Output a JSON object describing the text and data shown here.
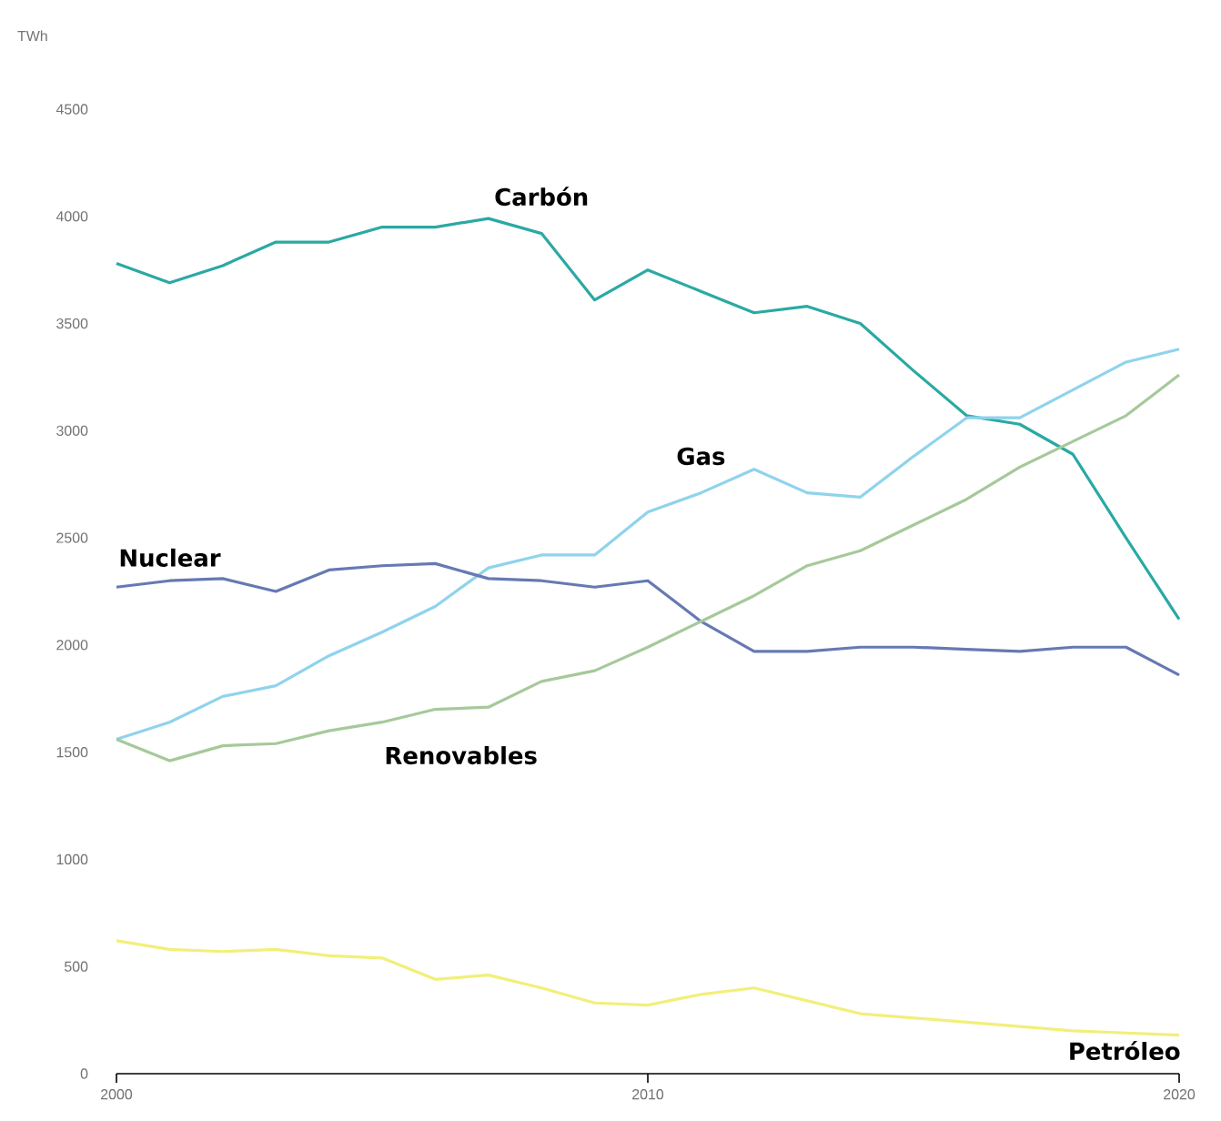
{
  "chart_data": {
    "type": "line",
    "ylabel": "TWh",
    "x": [
      2000,
      2001,
      2002,
      2003,
      2004,
      2005,
      2006,
      2007,
      2008,
      2009,
      2010,
      2011,
      2012,
      2013,
      2014,
      2015,
      2016,
      2017,
      2018,
      2019,
      2020
    ],
    "xlim": [
      2000,
      2020
    ],
    "xticks": [
      2000,
      2010,
      2020
    ],
    "ylim": [
      0,
      4500
    ],
    "yticks": [
      0,
      500,
      1000,
      1500,
      2000,
      2500,
      3000,
      3500,
      4000,
      4500
    ],
    "series": [
      {
        "name": "Carbón",
        "color": "#2aa9a4",
        "values": [
          3780,
          3690,
          3770,
          3880,
          3880,
          3950,
          3950,
          3990,
          3920,
          3610,
          3750,
          3650,
          3550,
          3580,
          3500,
          3280,
          3070,
          3030,
          2890,
          2500,
          2120
        ]
      },
      {
        "name": "Gas",
        "color": "#8fd3ec",
        "values": [
          1560,
          1640,
          1760,
          1810,
          1950,
          2060,
          2180,
          2360,
          2420,
          2420,
          2620,
          2710,
          2820,
          2710,
          2690,
          2880,
          3060,
          3060,
          3190,
          3320,
          3380
        ]
      },
      {
        "name": "Nuclear",
        "color": "#6679b3",
        "values": [
          2270,
          2300,
          2310,
          2250,
          2350,
          2370,
          2380,
          2310,
          2300,
          2270,
          2300,
          2110,
          1970,
          1970,
          1990,
          1990,
          1980,
          1970,
          1990,
          1990,
          1860
        ]
      },
      {
        "name": "Renovables",
        "color": "#a6c99a",
        "values": [
          1560,
          1460,
          1530,
          1540,
          1600,
          1640,
          1700,
          1710,
          1830,
          1880,
          1990,
          2110,
          2230,
          2370,
          2440,
          2560,
          2680,
          2830,
          2950,
          3070,
          3260
        ]
      },
      {
        "name": "Petróleo",
        "color": "#f2ef7a",
        "values": [
          620,
          580,
          570,
          580,
          550,
          540,
          440,
          460,
          400,
          330,
          320,
          370,
          400,
          340,
          280,
          260,
          240,
          220,
          200,
          190,
          180
        ]
      }
    ]
  }
}
